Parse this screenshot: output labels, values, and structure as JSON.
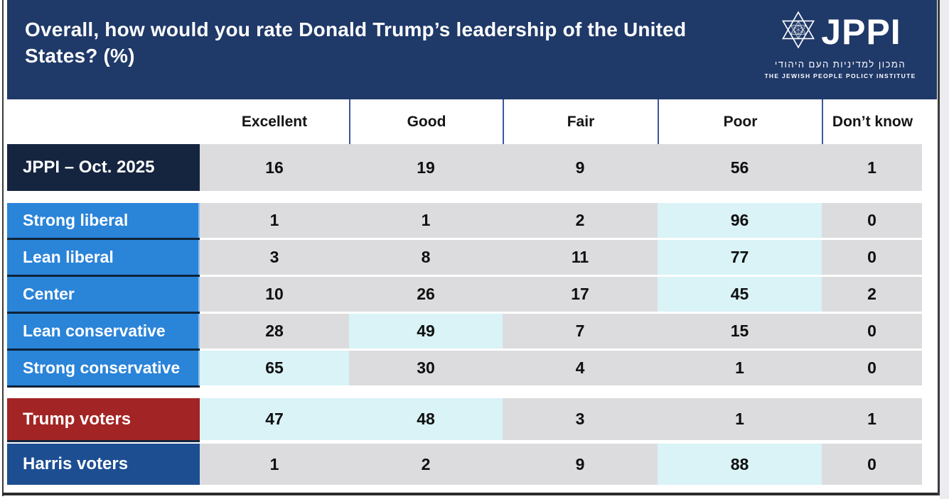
{
  "header": {
    "title": "Overall, how would you rate Donald Trump’s leadership of the United States? (%)",
    "logo": {
      "acronym": "JPPI",
      "hebrew": "המכון למדיניות העם היהודי",
      "english": "THE JEWISH PEOPLE POLICY INSTITUTE"
    }
  },
  "chart_data": {
    "type": "table",
    "title": "Overall, how would you rate Donald Trump’s leadership of the United States? (%)",
    "columns": [
      "Excellent",
      "Good",
      "Fair",
      "Poor",
      "Don’t know"
    ],
    "rows": [
      {
        "label": "JPPI – Oct. 2025",
        "group": "total",
        "values": [
          16,
          19,
          9,
          56,
          1
        ],
        "highlights": []
      },
      {
        "label": "Strong liberal",
        "group": "ideology",
        "values": [
          1,
          1,
          2,
          96,
          0
        ],
        "highlights": [
          3
        ]
      },
      {
        "label": "Lean liberal",
        "group": "ideology",
        "values": [
          3,
          8,
          11,
          77,
          0
        ],
        "highlights": [
          3
        ]
      },
      {
        "label": "Center",
        "group": "ideology",
        "values": [
          10,
          26,
          17,
          45,
          2
        ],
        "highlights": [
          3
        ]
      },
      {
        "label": "Lean conservative",
        "group": "ideology",
        "values": [
          28,
          49,
          7,
          15,
          0
        ],
        "highlights": [
          1
        ]
      },
      {
        "label": "Strong conservative",
        "group": "ideology",
        "values": [
          65,
          30,
          4,
          1,
          0
        ],
        "highlights": [
          0
        ]
      },
      {
        "label": "Trump voters",
        "group": "trump",
        "values": [
          47,
          48,
          3,
          1,
          1
        ],
        "highlights": [
          0,
          1
        ]
      },
      {
        "label": "Harris voters",
        "group": "harris",
        "values": [
          1,
          2,
          9,
          88,
          0
        ],
        "highlights": [
          3
        ]
      }
    ]
  },
  "colors": {
    "header_navy": "#1f3968",
    "total_label": "#152540",
    "ideology_label": "#2a84d8",
    "trump_label": "#a32424",
    "harris_label": "#1d4e92",
    "cell_gray": "#dcdcde",
    "cell_highlight": "#d9f3f7",
    "separator_blue": "#3a57a0"
  }
}
